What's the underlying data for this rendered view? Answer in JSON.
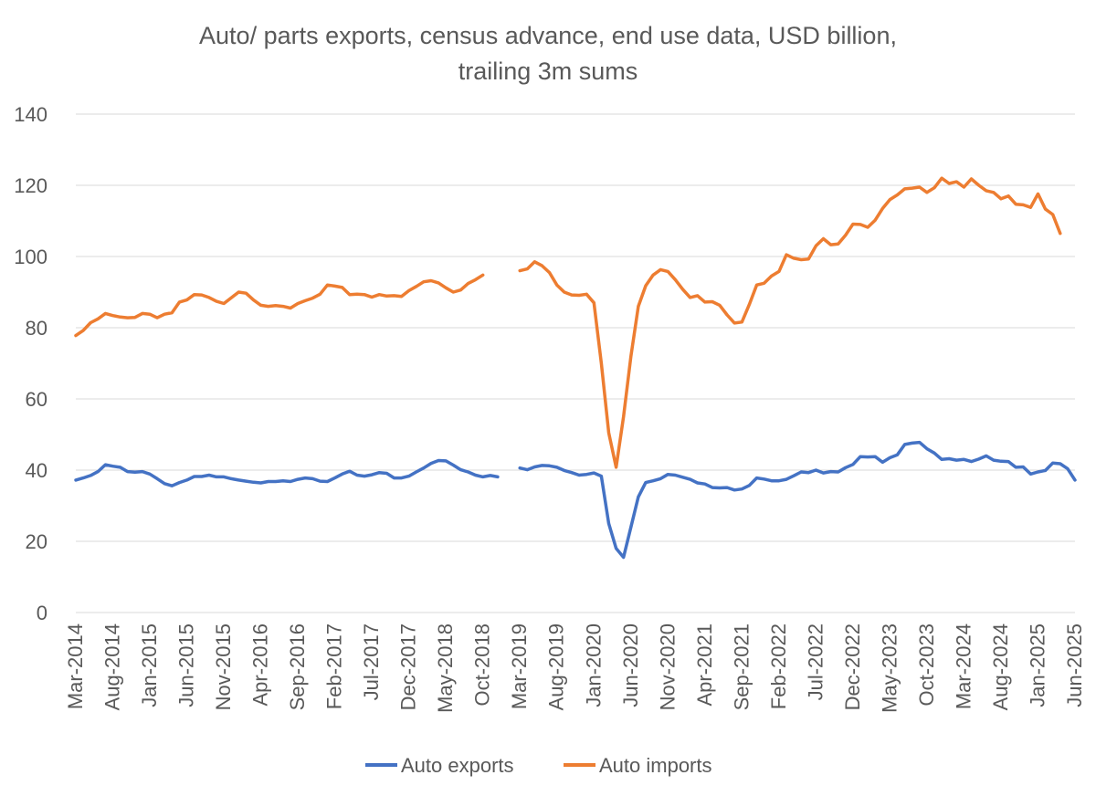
{
  "chart_data": {
    "type": "line",
    "title": [
      "Auto/ parts exports, census advance, end use data, USD billion,",
      "trailing 3m sums"
    ],
    "ylim": [
      0,
      140
    ],
    "yticks": [
      0,
      20,
      40,
      60,
      80,
      100,
      120,
      140
    ],
    "grid": true,
    "legend_position": "bottom",
    "x_tick_labels": [
      "Mar-2014",
      "Aug-2014",
      "Jan-2015",
      "Jun-2015",
      "Nov-2015",
      "Apr-2016",
      "Sep-2016",
      "Feb-2017",
      "Jul-2017",
      "Dec-2017",
      "May-2018",
      "Oct-2018",
      "Mar-2019",
      "Aug-2019",
      "Jan-2020",
      "Jun-2020",
      "Nov-2020",
      "Apr-2021",
      "Sep-2021",
      "Feb-2022",
      "Jul-2022",
      "Dec-2022",
      "May-2023",
      "Oct-2023",
      "Mar-2024",
      "Aug-2024",
      "Jan-2025",
      "Jun-2025"
    ],
    "x_start": "2014-03",
    "x_end": "2025-06",
    "series": [
      {
        "name": "Auto exports",
        "color": "#4472C4",
        "segments": [
          {
            "start": "2014-03",
            "values": [
              37.2,
              37.8,
              38.5,
              39.6,
              41.5,
              41.1,
              40.8,
              39.6,
              39.4,
              39.6,
              38.9,
              37.6,
              36.2,
              35.6,
              36.5,
              37.2,
              38.2,
              38.2,
              38.6,
              38.1,
              38.1,
              37.6,
              37.2,
              36.9,
              36.6,
              36.4,
              36.8,
              36.8,
              37.0,
              36.8,
              37.4,
              37.8,
              37.6,
              36.9,
              36.8,
              37.8,
              38.9,
              39.7,
              38.6,
              38.3,
              38.7,
              39.3,
              39.1,
              37.8,
              37.8,
              38.3,
              39.5,
              40.6,
              41.9,
              42.7,
              42.6,
              41.4,
              40.1,
              39.5,
              38.6,
              38.1,
              38.5,
              38.1
            ]
          },
          {
            "start": "2019-03",
            "values": [
              40.6,
              40.1,
              40.9,
              41.3,
              41.2,
              40.8,
              39.9,
              39.3,
              38.6,
              38.8,
              39.2,
              38.3,
              25.0,
              18.0,
              15.5,
              24.0,
              32.5,
              36.5,
              37.0,
              37.6,
              38.8,
              38.6,
              38.0,
              37.4,
              36.4,
              36.1,
              35.1,
              35.0,
              35.1,
              34.4,
              34.7,
              35.7,
              37.8,
              37.5,
              37.0,
              37.0,
              37.4,
              38.4,
              39.5,
              39.3,
              40.0,
              39.2,
              39.6,
              39.5,
              40.7,
              41.6,
              43.8,
              43.7,
              43.8,
              42.2,
              43.5,
              44.3,
              47.2,
              47.6,
              47.8,
              46.0,
              44.8,
              43.0,
              43.2,
              42.8,
              43.0,
              42.4,
              43.1,
              44.0,
              42.8,
              42.5,
              42.4,
              40.8,
              40.9,
              38.9,
              39.5,
              39.9,
              42.0,
              41.8,
              40.4,
              37.2
            ]
          }
        ]
      },
      {
        "name": "Auto imports",
        "color": "#ED7D31",
        "segments": [
          {
            "start": "2014-03",
            "values": [
              77.8,
              79.2,
              81.4,
              82.5,
              84.0,
              83.4,
              83.0,
              82.8,
              82.9,
              84.0,
              83.8,
              82.8,
              83.8,
              84.2,
              87.2,
              87.8,
              89.3,
              89.2,
              88.5,
              87.4,
              86.8,
              88.4,
              90.0,
              89.7,
              87.8,
              86.3,
              86.0,
              86.2,
              86.0,
              85.5,
              86.8,
              87.6,
              88.3,
              89.4,
              92.0,
              91.7,
              91.3,
              89.3,
              89.4,
              89.3,
              88.6,
              89.3,
              88.9,
              89.0,
              88.8,
              90.4,
              91.6,
              92.9,
              93.2,
              92.6,
              91.2,
              90.0,
              90.6,
              92.4,
              93.5,
              94.8
            ]
          },
          {
            "start": "2019-03",
            "values": [
              96.0,
              96.5,
              98.5,
              97.4,
              95.5,
              92.0,
              90.0,
              89.2,
              89.1,
              89.4,
              87.0,
              70.0,
              50.5,
              40.8,
              55.0,
              72.0,
              86.0,
              91.8,
              94.8,
              96.3,
              95.8,
              93.5,
              90.8,
              88.5,
              89.0,
              87.2,
              87.3,
              86.3,
              83.6,
              81.3,
              81.6,
              86.5,
              92.0,
              92.5,
              94.5,
              95.8,
              100.5,
              99.5,
              99.1,
              99.3,
              103.0,
              105.0,
              103.3,
              103.5,
              106.0,
              109.1,
              109.0,
              108.2,
              110.2,
              113.5,
              116.0,
              117.3,
              119.0,
              119.2,
              119.5,
              118.0,
              119.3,
              122.0,
              120.5,
              121.0,
              119.5,
              121.8,
              120.0,
              118.5,
              118.0,
              116.2,
              117.0,
              114.7,
              114.5,
              113.8,
              117.6,
              113.3,
              111.8,
              106.5
            ]
          }
        ]
      }
    ]
  }
}
